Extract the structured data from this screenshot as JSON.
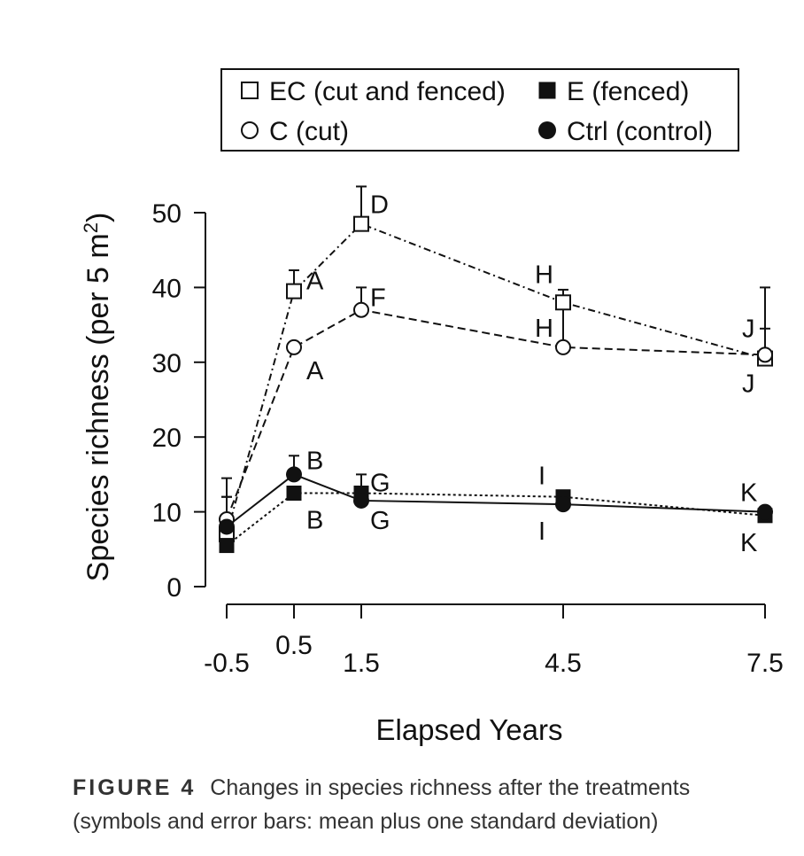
{
  "chart_data": {
    "type": "line",
    "xlabel": "Elapsed Years",
    "ylabel_main": "Species richness (per 5 m",
    "ylabel_sup": "2",
    "ylabel_close": ")",
    "x": [
      -0.5,
      0.5,
      1.5,
      4.5,
      7.5
    ],
    "x_ticks": [
      "-0.5",
      "0.5",
      "1.5",
      "4.5",
      "7.5"
    ],
    "y_ticks": [
      "0",
      "10",
      "20",
      "30",
      "40",
      "50"
    ],
    "ylim": [
      0,
      50
    ],
    "series": [
      {
        "name": "EC (cut and fenced)",
        "marker": "open-square",
        "line": "dotdash",
        "values": [
          7,
          39.5,
          48.5,
          38,
          30.5
        ],
        "sd": [
          5,
          2.8,
          5,
          1.7,
          9.5
        ]
      },
      {
        "name": "E (fenced)",
        "marker": "filled-square",
        "line": "dotted",
        "values": [
          5.5,
          12.5,
          12.5,
          12,
          9.5
        ],
        "sd": [
          0,
          0,
          2.5,
          0,
          0
        ]
      },
      {
        "name": "C (cut)",
        "marker": "open-circle",
        "line": "dashed",
        "values": [
          9,
          32,
          37,
          32,
          31
        ],
        "sd": [
          5.5,
          0.5,
          3,
          6,
          3.5
        ]
      },
      {
        "name": "Ctrl (control)",
        "marker": "filled-circle",
        "line": "solid",
        "values": [
          8,
          15,
          11.5,
          11,
          10
        ],
        "sd": [
          4,
          2.5,
          0,
          0,
          0
        ]
      }
    ],
    "annotations": [
      {
        "text": "A",
        "x": 0.5,
        "y": 39.5
      },
      {
        "text": "A",
        "x": 0.5,
        "y": 32
      },
      {
        "text": "D",
        "x": 1.5,
        "y": 48.5
      },
      {
        "text": "F",
        "x": 1.5,
        "y": 37
      },
      {
        "text": "H",
        "x": 4.5,
        "y": 38
      },
      {
        "text": "H",
        "x": 4.5,
        "y": 32
      },
      {
        "text": "J",
        "x": 7.5,
        "y": 31
      },
      {
        "text": "J",
        "x": 7.5,
        "y": 30.5
      },
      {
        "text": "B",
        "x": 0.5,
        "y": 15
      },
      {
        "text": "B",
        "x": 0.5,
        "y": 12.5
      },
      {
        "text": "G",
        "x": 1.5,
        "y": 12.5
      },
      {
        "text": "G",
        "x": 1.5,
        "y": 11.5
      },
      {
        "text": "I",
        "x": 4.5,
        "y": 12
      },
      {
        "text": "I",
        "x": 4.5,
        "y": 11
      },
      {
        "text": "K",
        "x": 7.5,
        "y": 10
      },
      {
        "text": "K",
        "x": 7.5,
        "y": 9.5
      }
    ],
    "legend_placement": "top"
  },
  "caption": {
    "label": "FIGURE 4",
    "text": "Changes in species richness after the treatments (symbols and error bars: mean plus one standard deviation)"
  }
}
